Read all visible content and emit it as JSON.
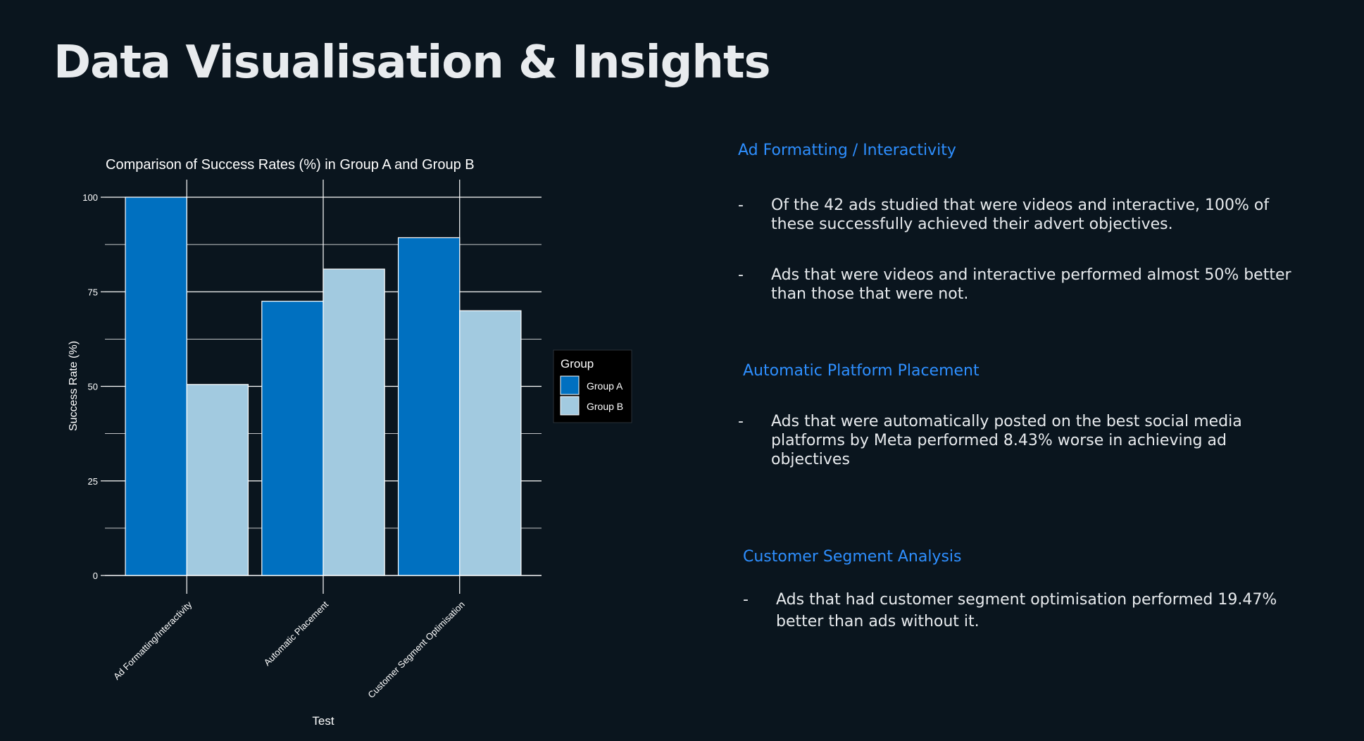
{
  "slide": {
    "title": "Data Visualisation & Insights"
  },
  "sections": [
    {
      "heading": "Ad Formatting / Interactivity",
      "bullets": [
        "Of the 42 ads studied that were videos and interactive, 100% of these successfully achieved their advert objectives.",
        "Ads that were videos and interactive performed almost 50% better than those that were not."
      ]
    },
    {
      "heading": "Automatic Platform Placement",
      "bullets": [
        "Ads that were automatically posted on the best social media platforms by Meta performed 8.43% worse in achieving ad objectives"
      ]
    },
    {
      "heading": "Customer Segment Analysis",
      "bullets": [
        "Ads that had customer segment optimisation performed 19.47% better than ads without it."
      ]
    }
  ],
  "bullet_dash": "-",
  "colors": {
    "background": "#0a151e",
    "heading_accent": "#2e8fff",
    "group_a": "#0070c0",
    "group_b": "#a2cae0",
    "text": "#e8ebee"
  },
  "chart_data": {
    "type": "bar",
    "title": "Comparison of Success Rates (%) in Group A and Group B",
    "xlabel": "Test",
    "ylabel": "Success Rate (%)",
    "categories": [
      "Ad Formatting/Interactivity",
      "Automatic Placement",
      "Customer Segment Optimisation"
    ],
    "series": [
      {
        "name": "Group A",
        "values": [
          100,
          72.5,
          89.3
        ],
        "color": "#0070c0"
      },
      {
        "name": "Group B",
        "values": [
          50.5,
          81,
          70
        ],
        "color": "#a2cae0"
      }
    ],
    "ylim": [
      0,
      100
    ],
    "yticks": [
      "0",
      "25",
      "50",
      "75",
      "100"
    ],
    "legend": {
      "title": "Group",
      "position": "right"
    },
    "grid": true
  }
}
